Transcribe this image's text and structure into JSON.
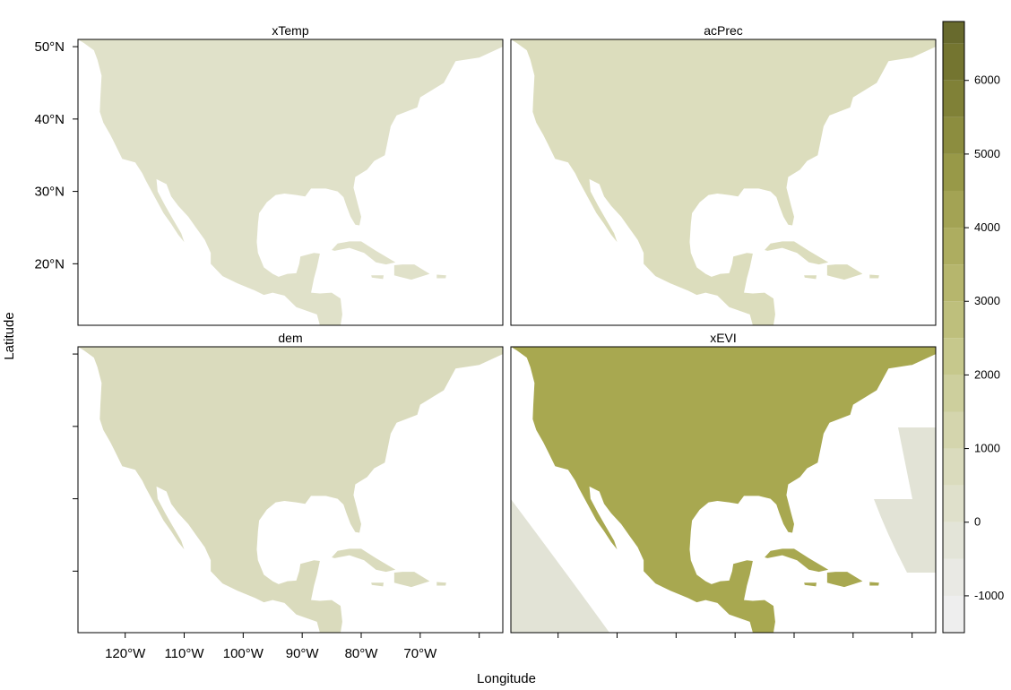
{
  "chart_data": {
    "type": "heatmap",
    "xlabel": "Longitude",
    "ylabel": "Latitude",
    "xlim": [
      -128,
      -56
    ],
    "ylim": [
      11.5,
      51
    ],
    "x_ticks": [
      {
        "value": -120,
        "label": "120°W"
      },
      {
        "value": -110,
        "label": "110°W"
      },
      {
        "value": -100,
        "label": "100°W"
      },
      {
        "value": -90,
        "label": "90°W"
      },
      {
        "value": -80,
        "label": "80°W"
      },
      {
        "value": -70,
        "label": "70°W"
      }
    ],
    "y_ticks": [
      {
        "value": 50,
        "label": "50°N"
      },
      {
        "value": 40,
        "label": "40°N"
      },
      {
        "value": 30,
        "label": "30°N"
      },
      {
        "value": 20,
        "label": "20°N"
      }
    ],
    "colorkey": {
      "range": [
        -1500,
        6800
      ],
      "step": 500,
      "ticks": [
        {
          "value": -1000,
          "label": "-1000"
        },
        {
          "value": 0,
          "label": "0"
        },
        {
          "value": 1000,
          "label": "1000"
        },
        {
          "value": 2000,
          "label": "2000"
        },
        {
          "value": 3000,
          "label": "3000"
        },
        {
          "value": 4000,
          "label": "4000"
        },
        {
          "value": 5000,
          "label": "5000"
        },
        {
          "value": 6000,
          "label": "6000"
        }
      ],
      "colors": [
        "#eeeeee",
        "#e9e9e4",
        "#e3e4d8",
        "#dfe0cb",
        "#dadbbd",
        "#d4d5ad",
        "#cdcf9d",
        "#c6c88c",
        "#bebf7c",
        "#b6b66d",
        "#adad60",
        "#a3a354",
        "#989948",
        "#8c8d3f",
        "#808137",
        "#747530",
        "#686a2d"
      ]
    },
    "panels": [
      {
        "name": "xTemp",
        "approx_value": 300,
        "color": "#e0e1c9"
      },
      {
        "name": "acPrec",
        "approx_value": 700,
        "color": "#dcddbd"
      },
      {
        "name": "dem",
        "approx_value": 600,
        "color": "#dadbbd"
      },
      {
        "name": "xEVI",
        "approx_value": 4000,
        "color": "#a8a850"
      }
    ]
  }
}
